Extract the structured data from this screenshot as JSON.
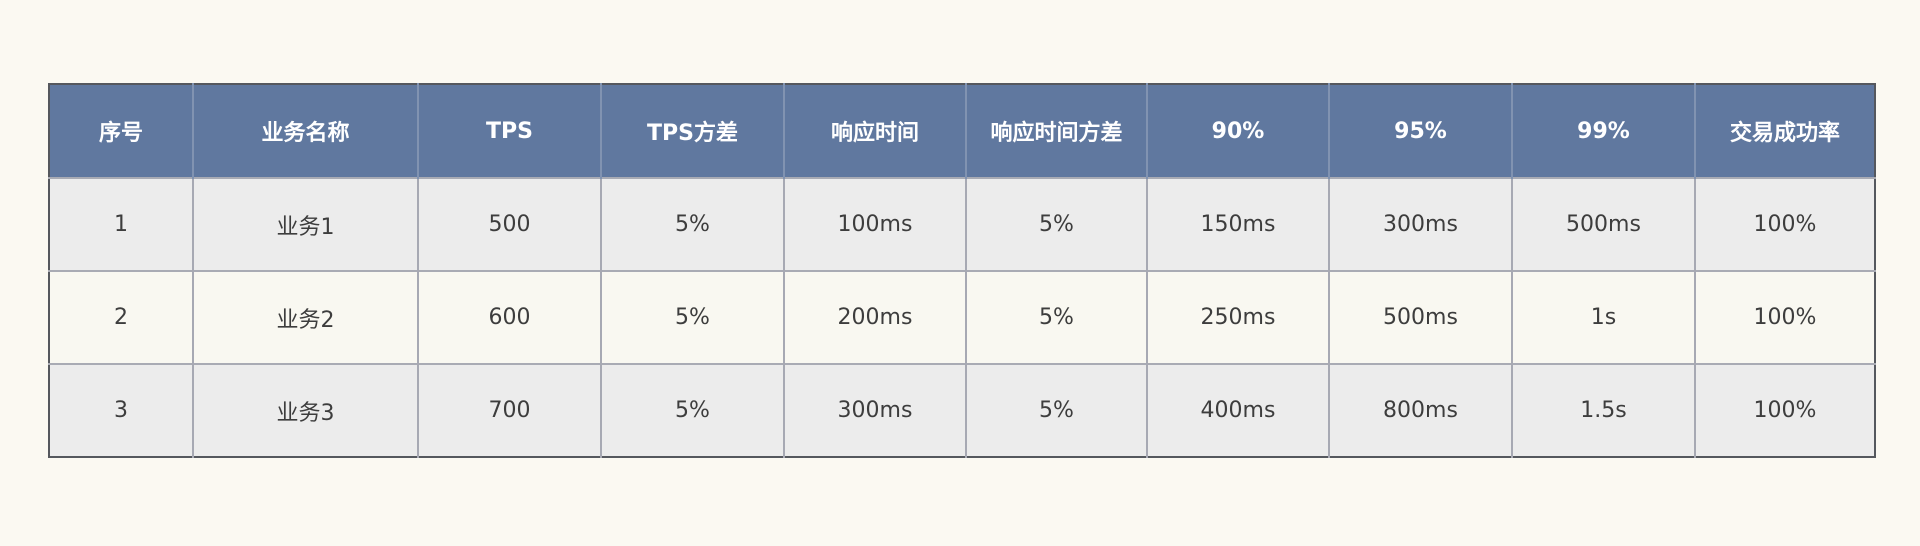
{
  "table": {
    "headers": [
      "序号",
      "业务名称",
      "TPS",
      "TPS方差",
      "响应时间",
      "响应时间方差",
      "90%",
      "95%",
      "99%",
      "交易成功率"
    ],
    "rows": [
      [
        "1",
        "业务1",
        "500",
        "5%",
        "100ms",
        "5%",
        "150ms",
        "300ms",
        "500ms",
        "100%"
      ],
      [
        "2",
        "业务2",
        "600",
        "5%",
        "200ms",
        "5%",
        "250ms",
        "500ms",
        "1s",
        "100%"
      ],
      [
        "3",
        "业务3",
        "700",
        "5%",
        "300ms",
        "5%",
        "400ms",
        "800ms",
        "1.5s",
        "100%"
      ]
    ]
  },
  "colors": {
    "page_background": "#fbf9f2",
    "header_background": "#60789f",
    "header_text": "#ffffff",
    "row_odd_background": "#ececec",
    "row_even_background": "#f9f8f1",
    "cell_text": "#3d3d3d",
    "border": "#a7a9b3"
  }
}
